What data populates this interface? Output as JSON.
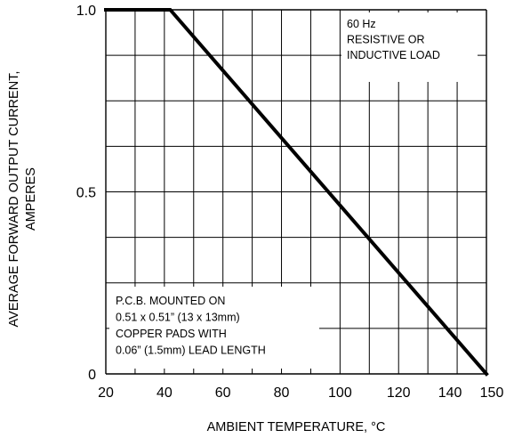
{
  "chart_data": {
    "type": "line",
    "xlabel": "AMBIENT TEMPERATURE, °C",
    "ylabel": [
      "AVERAGE FORWARD OUTPUT CURRENT,",
      "AMPERES"
    ],
    "xlim": [
      20,
      150
    ],
    "ylim": [
      0,
      1.0
    ],
    "x_ticks": [
      20,
      40,
      60,
      80,
      100,
      120,
      140,
      150
    ],
    "y_ticks": [
      {
        "value": 0,
        "label": "0"
      },
      {
        "value": 0.5,
        "label": "0.5"
      },
      {
        "value": 1.0,
        "label": "1.0"
      }
    ],
    "x_grid": [
      20,
      30,
      40,
      50,
      60,
      70,
      80,
      90,
      100,
      110,
      120,
      130,
      140,
      150
    ],
    "y_grid": [
      0,
      0.125,
      0.25,
      0.375,
      0.5,
      0.625,
      0.75,
      0.875,
      1.0
    ],
    "grid": true,
    "series": [
      {
        "x": [
          20,
          42,
          150
        ],
        "y": [
          1.0,
          1.0,
          0
        ]
      }
    ],
    "annotations": [
      {
        "lines": [
          "60 Hz",
          "RESISTIVE OR",
          "INDUCTIVE LOAD"
        ],
        "position": "top-right"
      },
      {
        "lines": [
          "P.C.B. MOUNTED ON",
          "0.51 x 0.51” (13 x 13mm)",
          "COPPER PADS WITH",
          "0.06” (1.5mm) LEAD LENGTH"
        ],
        "position": "bottom-left"
      }
    ]
  }
}
